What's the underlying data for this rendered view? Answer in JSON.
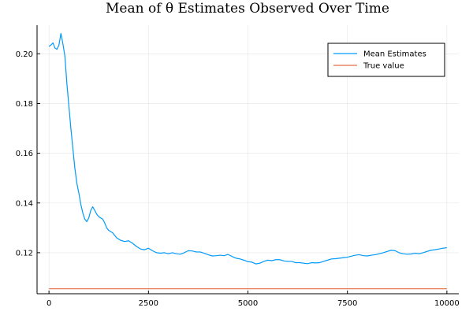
{
  "chart_data": {
    "type": "line",
    "title": "Mean of θ Estimates Observed Over Time",
    "xlabel": "",
    "ylabel": "",
    "xlim": [
      -300,
      10300
    ],
    "ylim": [
      0.1035,
      0.2115
    ],
    "x_ticks": [
      0,
      2500,
      5000,
      7500,
      10000
    ],
    "x_tick_labels": [
      "0",
      "2500",
      "5000",
      "7500",
      "10000"
    ],
    "y_ticks": [
      0.12,
      0.14,
      0.16,
      0.18,
      0.2
    ],
    "y_tick_labels": [
      "0.12",
      "0.14",
      "0.16",
      "0.18",
      "0.20"
    ],
    "grid": true,
    "legend_position": "top-right",
    "series": [
      {
        "name": "Mean Estimates",
        "color": "#009af9",
        "x": [
          0,
          50,
          100,
          150,
          200,
          250,
          300,
          350,
          400,
          450,
          500,
          550,
          600,
          650,
          700,
          750,
          800,
          850,
          900,
          950,
          1000,
          1050,
          1100,
          1150,
          1200,
          1250,
          1300,
          1350,
          1400,
          1450,
          1500,
          1600,
          1700,
          1800,
          1900,
          2000,
          2100,
          2200,
          2300,
          2400,
          2500,
          2600,
          2700,
          2800,
          2900,
          3000,
          3100,
          3200,
          3300,
          3400,
          3500,
          3600,
          3700,
          3800,
          3900,
          4000,
          4100,
          4200,
          4300,
          4400,
          4500,
          4600,
          4700,
          4800,
          4900,
          5000,
          5100,
          5200,
          5300,
          5400,
          5500,
          5600,
          5700,
          5800,
          5900,
          6000,
          6100,
          6200,
          6300,
          6400,
          6500,
          6600,
          6700,
          6800,
          6900,
          7000,
          7100,
          7200,
          7300,
          7400,
          7500,
          7600,
          7700,
          7800,
          7900,
          8000,
          8100,
          8200,
          8300,
          8400,
          8500,
          8600,
          8700,
          8800,
          8900,
          9000,
          9100,
          9200,
          9300,
          9400,
          9500,
          9600,
          9700,
          9800,
          9900,
          10000
        ],
        "y": [
          0.203,
          0.2035,
          0.2044,
          0.2023,
          0.2018,
          0.2035,
          0.2082,
          0.204,
          0.199,
          0.188,
          0.179,
          0.17,
          0.162,
          0.154,
          0.148,
          0.144,
          0.1395,
          0.136,
          0.1335,
          0.1325,
          0.134,
          0.137,
          0.1385,
          0.137,
          0.1355,
          0.1345,
          0.134,
          0.1335,
          0.132,
          0.13,
          0.129,
          0.128,
          0.126,
          0.125,
          0.1245,
          0.1248,
          0.1238,
          0.1225,
          0.1215,
          0.1212,
          0.1218,
          0.1208,
          0.12,
          0.1198,
          0.12,
          0.1196,
          0.12,
          0.1196,
          0.1194,
          0.12,
          0.1208,
          0.1207,
          0.1203,
          0.1203,
          0.1198,
          0.1192,
          0.1187,
          0.1188,
          0.119,
          0.1188,
          0.1193,
          0.1185,
          0.1178,
          0.1175,
          0.117,
          0.1164,
          0.1162,
          0.1155,
          0.1158,
          0.1165,
          0.117,
          0.1168,
          0.1172,
          0.1172,
          0.1167,
          0.1165,
          0.1165,
          0.116,
          0.116,
          0.1158,
          0.1156,
          0.116,
          0.1159,
          0.116,
          0.1165,
          0.117,
          0.1175,
          0.1176,
          0.1178,
          0.118,
          0.1182,
          0.1186,
          0.119,
          0.1192,
          0.1188,
          0.1187,
          0.119,
          0.1192,
          0.1196,
          0.12,
          0.1205,
          0.121,
          0.1208,
          0.12,
          0.1196,
          0.1194,
          0.1195,
          0.1198,
          0.1196,
          0.12,
          0.1205,
          0.121,
          0.1212,
          0.1215,
          0.1218,
          0.122
        ]
      },
      {
        "name": "True value",
        "color": "#e26f46",
        "x": [
          0,
          10000
        ],
        "y": [
          0.1055,
          0.1055
        ]
      }
    ]
  }
}
